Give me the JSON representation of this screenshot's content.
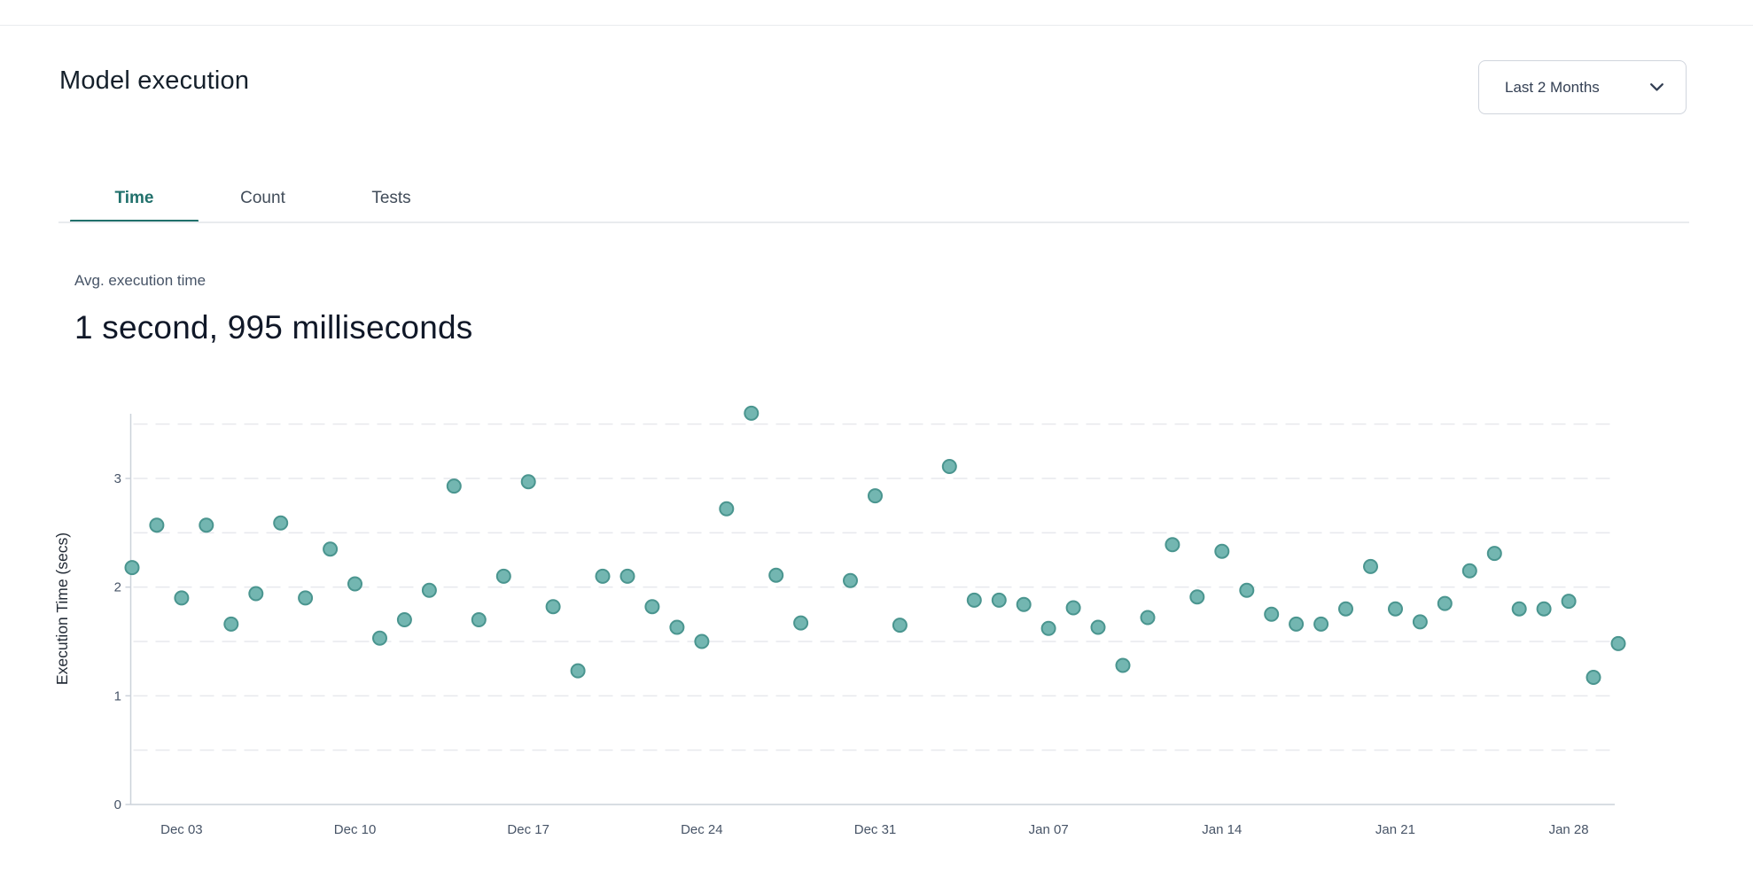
{
  "page": {
    "background": "#ffffff",
    "divider_color": "#e9ebee",
    "accent_color": "#20706b"
  },
  "header": {
    "title": "Model execution",
    "range_selector": {
      "label": "Last 2 Months",
      "chevron_icon": "chevron-down"
    }
  },
  "tabs": {
    "active_index": 0,
    "items": [
      {
        "label": "Time"
      },
      {
        "label": "Count"
      },
      {
        "label": "Tests"
      }
    ]
  },
  "stat": {
    "label": "Avg. execution time",
    "value": "1 second, 995 milliseconds"
  },
  "chart_data": {
    "type": "scatter",
    "title": "",
    "xlabel": "",
    "ylabel": "Execution Time (secs)",
    "ylim": [
      0,
      3.65
    ],
    "y_ticks": [
      0,
      1,
      2,
      3
    ],
    "gridlines_at": [
      0.5,
      1,
      1.5,
      2,
      2.5,
      3,
      3.5
    ],
    "grid_dashed": true,
    "legend": "none",
    "point_color": "#73b6b1",
    "point_stroke_color": "#4a958f",
    "grid_color": "#e7e9ed",
    "axis_line_color": "#ccd2da",
    "tick_label_color": "#475467",
    "ylabel_color": "#232b36",
    "x_tick_labels": [
      "Dec 03",
      "Dec 10",
      "Dec 17",
      "Dec 24",
      "Dec 31",
      "Jan 07",
      "Jan 14",
      "Jan 21",
      "Jan 28"
    ],
    "x_tick_day_index": [
      2,
      9,
      16,
      23,
      30,
      37,
      44,
      51,
      58
    ],
    "points": [
      {
        "date": "Dec 01",
        "value": 2.18
      },
      {
        "date": "Dec 02",
        "value": 2.57
      },
      {
        "date": "Dec 03",
        "value": 1.9
      },
      {
        "date": "Dec 04",
        "value": 2.57
      },
      {
        "date": "Dec 05",
        "value": 1.66
      },
      {
        "date": "Dec 06",
        "value": 1.94
      },
      {
        "date": "Dec 07",
        "value": 2.59
      },
      {
        "date": "Dec 08",
        "value": 1.9
      },
      {
        "date": "Dec 09",
        "value": 2.35
      },
      {
        "date": "Dec 10",
        "value": 2.03
      },
      {
        "date": "Dec 11",
        "value": 1.53
      },
      {
        "date": "Dec 12",
        "value": 1.7
      },
      {
        "date": "Dec 13",
        "value": 1.97
      },
      {
        "date": "Dec 14",
        "value": 2.93
      },
      {
        "date": "Dec 15",
        "value": 1.7
      },
      {
        "date": "Dec 16",
        "value": 2.1
      },
      {
        "date": "Dec 17",
        "value": 2.97
      },
      {
        "date": "Dec 18",
        "value": 1.82
      },
      {
        "date": "Dec 19",
        "value": 1.23
      },
      {
        "date": "Dec 20",
        "value": 2.1
      },
      {
        "date": "Dec 21",
        "value": 2.1
      },
      {
        "date": "Dec 22",
        "value": 1.82
      },
      {
        "date": "Dec 23",
        "value": 1.63
      },
      {
        "date": "Dec 24",
        "value": 1.5
      },
      {
        "date": "Dec 25",
        "value": 2.72
      },
      {
        "date": "Dec 26",
        "value": 3.6
      },
      {
        "date": "Dec 27",
        "value": 2.11
      },
      {
        "date": "Dec 28",
        "value": 1.67
      },
      {
        "date": "Dec 29",
        "value": null
      },
      {
        "date": "Dec 30",
        "value": 2.06
      },
      {
        "date": "Dec 31",
        "value": 2.84
      },
      {
        "date": "Jan 01",
        "value": 1.65
      },
      {
        "date": "Jan 02",
        "value": null
      },
      {
        "date": "Jan 03",
        "value": 3.11
      },
      {
        "date": "Jan 04",
        "value": 1.88
      },
      {
        "date": "Jan 05",
        "value": 1.88
      },
      {
        "date": "Jan 06",
        "value": 1.84
      },
      {
        "date": "Jan 07",
        "value": 1.62
      },
      {
        "date": "Jan 08",
        "value": 1.81
      },
      {
        "date": "Jan 09",
        "value": 1.63
      },
      {
        "date": "Jan 10",
        "value": 1.28
      },
      {
        "date": "Jan 11",
        "value": 1.72
      },
      {
        "date": "Jan 12",
        "value": 2.39
      },
      {
        "date": "Jan 13",
        "value": 1.91
      },
      {
        "date": "Jan 14",
        "value": 2.33
      },
      {
        "date": "Jan 15",
        "value": 1.97
      },
      {
        "date": "Jan 16",
        "value": 1.75
      },
      {
        "date": "Jan 17",
        "value": 1.66
      },
      {
        "date": "Jan 18",
        "value": 1.66
      },
      {
        "date": "Jan 19",
        "value": 1.8
      },
      {
        "date": "Jan 20",
        "value": 2.19
      },
      {
        "date": "Jan 21",
        "value": 1.8
      },
      {
        "date": "Jan 22",
        "value": 1.68
      },
      {
        "date": "Jan 23",
        "value": 1.85
      },
      {
        "date": "Jan 24",
        "value": 2.15
      },
      {
        "date": "Jan 25",
        "value": 2.31
      },
      {
        "date": "Jan 26",
        "value": 1.8
      },
      {
        "date": "Jan 27",
        "value": 1.8
      },
      {
        "date": "Jan 28",
        "value": 1.87
      },
      {
        "date": "Jan 29",
        "value": 1.17
      },
      {
        "date": "Jan 30",
        "value": 1.48
      }
    ]
  }
}
